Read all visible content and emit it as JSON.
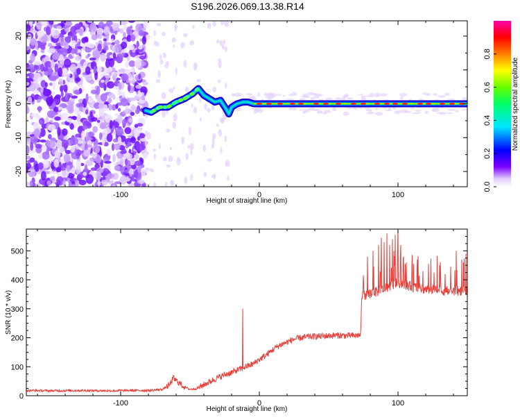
{
  "title": "S196.2026.069.13.38.R14",
  "chart_data": [
    {
      "type": "heatmap",
      "xlabel": "Height of straight line (km)",
      "ylabel": "Frequency (Hz)",
      "xlim": [
        -168,
        150
      ],
      "ylim": [
        -24.5,
        24.5
      ],
      "x_ticks": [
        "-100",
        "0",
        "100"
      ],
      "x_tick_values": [
        -100,
        0,
        100
      ],
      "y_ticks": [
        "20",
        "10",
        "0",
        "-10",
        "-20"
      ],
      "y_tick_values": [
        20,
        10,
        0,
        -10,
        -20
      ],
      "colorbar": {
        "label": "Normalized spectral amplitude",
        "range": [
          0,
          1
        ],
        "ticks": [
          "0.0",
          "0.2",
          "0.4",
          "0.6",
          "0.8"
        ],
        "tick_values": [
          0,
          0.2,
          0.4,
          0.6,
          0.8
        ],
        "colors": [
          "#ffffff",
          "#7b00ff",
          "#0000ff",
          "#00e5ff",
          "#00ff00",
          "#ffff00",
          "#ff8000",
          "#ff0000",
          "#ff00aa"
        ]
      },
      "ridge": {
        "description_points_x": [
          -82,
          -78,
          -72,
          -66,
          -60,
          -54,
          -48,
          -44,
          -40,
          -36,
          -32,
          -28,
          -24,
          -22,
          -20,
          -16,
          -12,
          -8,
          -4,
          0,
          20,
          60,
          100,
          150
        ],
        "description_points_y": [
          -2,
          -2.5,
          -1,
          -1,
          0.5,
          1.5,
          3,
          4.5,
          2.5,
          1.5,
          0.5,
          1,
          -1.5,
          -3,
          -1,
          0,
          0.5,
          0.5,
          0,
          0,
          0,
          0,
          0,
          0
        ]
      }
    },
    {
      "type": "line",
      "xlabel": "Height of straight line (km)",
      "ylabel": "SNR (10 * v/v)",
      "xlim": [
        -168,
        150
      ],
      "ylim": [
        0,
        575
      ],
      "x_ticks": [
        "-100",
        "0",
        "100"
      ],
      "x_tick_values": [
        -100,
        0,
        100
      ],
      "y_ticks": [
        "0",
        "100",
        "200",
        "300",
        "400",
        "500"
      ],
      "y_tick_values": [
        0,
        100,
        200,
        300,
        400,
        500
      ],
      "series": [
        {
          "name": "SNR",
          "color": "#e8403a",
          "x": [
            -168,
            -150,
            -130,
            -110,
            -90,
            -80,
            -70,
            -65,
            -62,
            -58,
            -54,
            -50,
            -45,
            -40,
            -35,
            -30,
            -25,
            -20,
            -15,
            -12,
            -10,
            -5,
            0,
            5,
            10,
            15,
            20,
            25,
            30,
            35,
            40,
            45,
            50,
            55,
            60,
            65,
            70,
            73,
            74,
            78,
            82,
            86,
            90,
            95,
            100,
            105,
            110,
            115,
            120,
            125,
            130,
            135,
            140,
            145,
            150
          ],
          "values": [
            18,
            17,
            18,
            17,
            18,
            18,
            22,
            35,
            60,
            45,
            30,
            22,
            25,
            38,
            50,
            62,
            72,
            80,
            90,
            95,
            100,
            108,
            125,
            140,
            160,
            175,
            185,
            195,
            200,
            203,
            205,
            205,
            207,
            208,
            208,
            207,
            208,
            210,
            345,
            350,
            355,
            360,
            370,
            380,
            390,
            385,
            375,
            370,
            368,
            365,
            362,
            362,
            360,
            362,
            365
          ],
          "spikes_x": [
            -12,
            78,
            82,
            86,
            88,
            90,
            92,
            94,
            96,
            98,
            100,
            102,
            104,
            106,
            110,
            114,
            118,
            122,
            126,
            130,
            134,
            138,
            142,
            146,
            149
          ],
          "spikes_y": [
            300,
            480,
            500,
            520,
            545,
            530,
            560,
            520,
            540,
            555,
            575,
            520,
            480,
            460,
            440,
            470,
            430,
            455,
            425,
            450,
            420,
            445,
            500,
            470,
            490
          ]
        }
      ]
    }
  ]
}
